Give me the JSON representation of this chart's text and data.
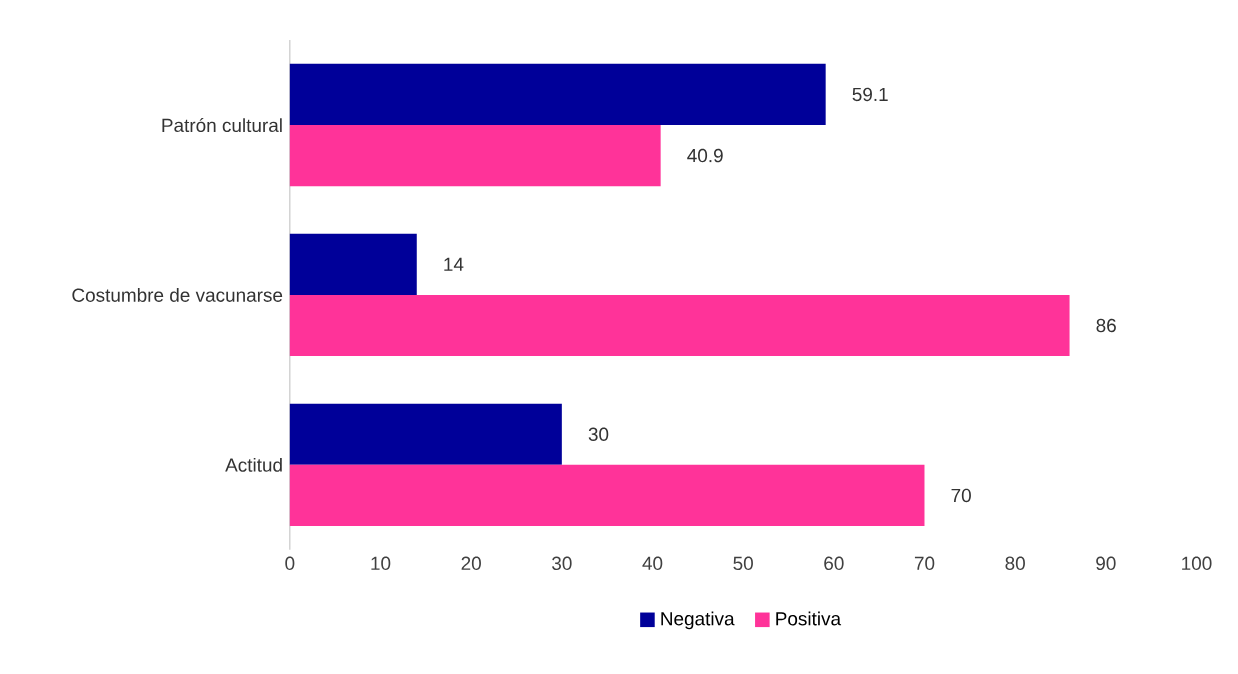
{
  "chart_data": {
    "type": "bar",
    "orientation": "horizontal",
    "categories": [
      "Patrón cultural",
      "Costumbre de vacunarse",
      "Actitud"
    ],
    "series": [
      {
        "name": "Negativa",
        "color": "#000099",
        "values": [
          59.1,
          14,
          30
        ]
      },
      {
        "name": "Positiva",
        "color": "#ff3399",
        "values": [
          40.9,
          86,
          70
        ]
      }
    ],
    "xlim": [
      0,
      100
    ],
    "xticks": [
      0,
      10,
      20,
      30,
      40,
      50,
      60,
      70,
      80,
      90,
      100
    ],
    "data_labels": true,
    "grid": false,
    "legend": "bottom"
  }
}
